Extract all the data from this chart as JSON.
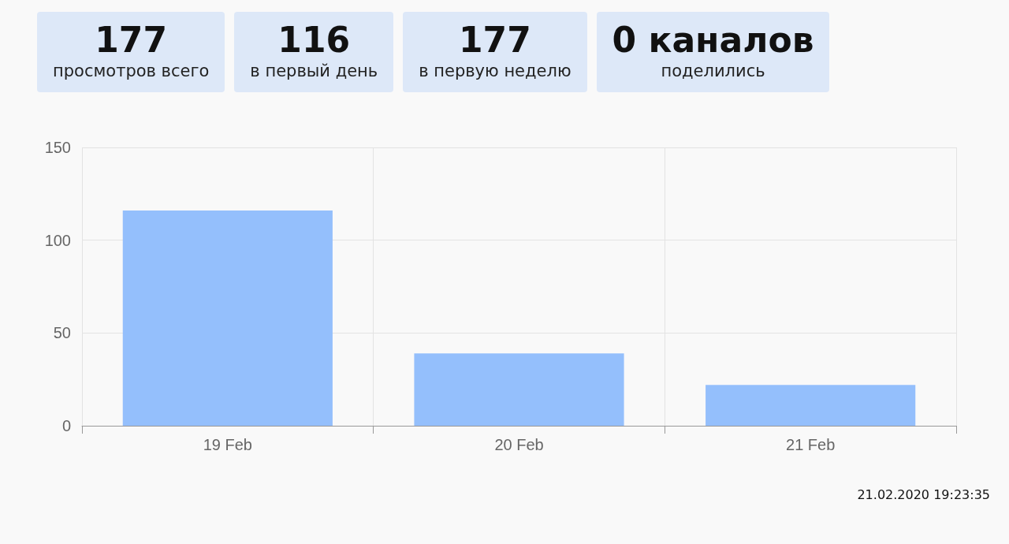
{
  "chart_data": {
    "type": "bar",
    "categories": [
      "19 Feb",
      "20 Feb",
      "21 Feb"
    ],
    "values": [
      116,
      39,
      22
    ],
    "color": "#94bffc",
    "ylim": [
      0,
      150
    ],
    "yticks": [
      0,
      50,
      100,
      150
    ],
    "grid": true,
    "annotations": [
      "177",
      "просмотров всего",
      "116",
      "в первый день",
      "177",
      "в первую неделю",
      "0 каналов",
      "поделились",
      "21.02.2020 19:23:35"
    ]
  }
}
